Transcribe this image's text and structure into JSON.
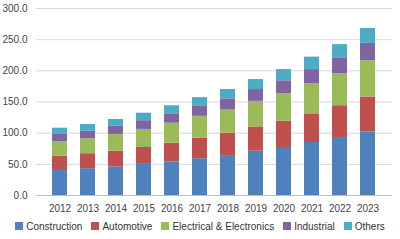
{
  "chart_data": {
    "type": "bar",
    "stacked": true,
    "grid": true,
    "legend": "bottom",
    "categories": [
      "2012",
      "2013",
      "2014",
      "2015",
      "2016",
      "2017",
      "2018",
      "2019",
      "2020",
      "2021",
      "2022",
      "2023"
    ],
    "series": [
      {
        "name": "Construction",
        "color": "#4f81bd",
        "values": [
          40,
          43,
          46,
          50,
          54,
          59,
          64,
          71,
          77,
          85,
          93,
          102
        ]
      },
      {
        "name": "Automotive",
        "color": "#c0504d",
        "values": [
          23,
          24,
          25,
          27,
          30,
          33,
          36,
          39,
          42,
          46,
          51,
          56
        ]
      },
      {
        "name": "Electrical & Electronics",
        "color": "#9bbb59",
        "values": [
          23,
          24,
          27,
          29,
          32,
          35,
          37,
          41,
          44,
          48,
          51,
          58
        ]
      },
      {
        "name": "Industrial",
        "color": "#8064a2",
        "values": [
          12,
          12,
          13,
          14,
          15,
          16,
          18,
          19,
          21,
          23,
          25,
          28
        ]
      },
      {
        "name": "Others",
        "color": "#4bacc6",
        "values": [
          10,
          11,
          11,
          12,
          13,
          14,
          15,
          16,
          18,
          20,
          22,
          24
        ]
      }
    ],
    "ylim": [
      0,
      300
    ],
    "yticks": [
      {
        "value": 0,
        "label": "0.0"
      },
      {
        "value": 50,
        "label": "50.0"
      },
      {
        "value": 100,
        "label": "100.0"
      },
      {
        "value": 150,
        "label": "150.0"
      },
      {
        "value": 200,
        "label": "200.0"
      },
      {
        "value": 250,
        "label": "250.0"
      },
      {
        "value": 300,
        "label": "300.0"
      }
    ]
  }
}
